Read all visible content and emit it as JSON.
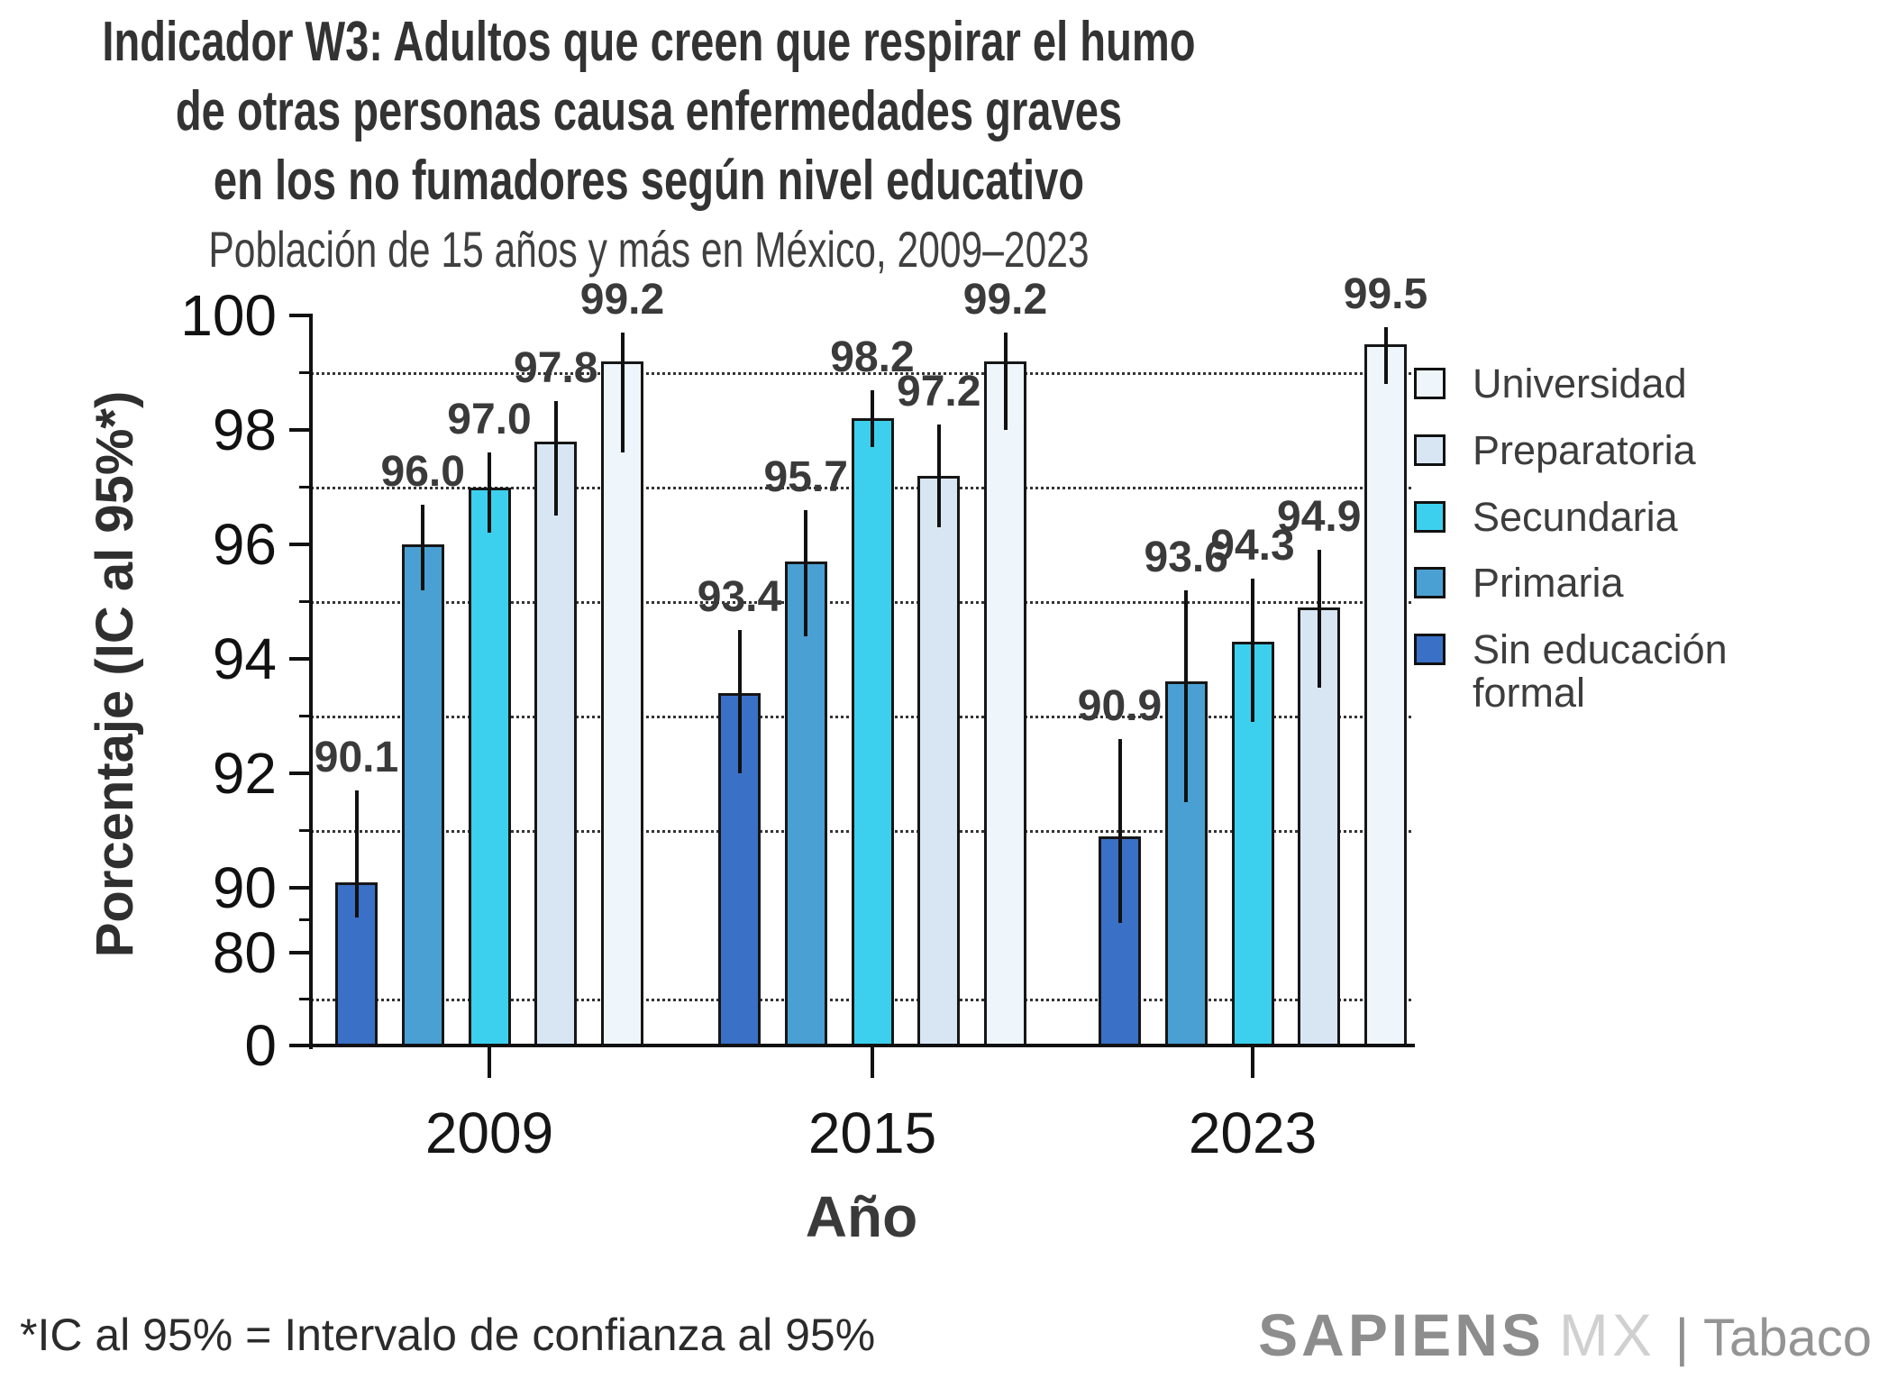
{
  "title": {
    "line1": "Indicador W3: Adultos que creen que respirar el humo",
    "line2": "de otras personas causa enfermedades graves",
    "line3": "en los no fumadores según nivel educativo"
  },
  "subtitle": "Población de 15 años y más en México, 2009–2023",
  "footnote": "*IC al 95% = Intervalo de confianza al 95%",
  "logo": {
    "brand": "SAPIENS",
    "suffix": "MX",
    "separator": "|",
    "product": "Tabaco"
  },
  "chart_data": {
    "type": "bar",
    "title": "Indicador W3: Adultos que creen que respirar el humo de otras personas causa enfermedades graves en los no fumadores según nivel educativo",
    "subtitle": "Población de 15 años y más en México, 2009–2023",
    "xlabel": "Año",
    "ylabel": "Porcentaje (IC al 95%*)",
    "categories": [
      "2009",
      "2015",
      "2023"
    ],
    "y_axis": {
      "major_ticks": [
        100,
        98,
        96,
        94,
        92,
        90,
        80,
        0
      ],
      "minor_ticks": [
        99,
        97,
        95,
        93,
        91,
        85,
        40
      ],
      "gridlines_at": [
        99,
        97,
        95,
        93,
        91,
        40
      ],
      "grid_style": "dotted",
      "scale_note": "non-linear axis, compressed below 90"
    },
    "legend_position": "right",
    "legend_order_top_to_bottom": [
      "Universidad",
      "Preparatoria",
      "Secundaria",
      "Primaria",
      "Sin educación formal"
    ],
    "series": [
      {
        "name": "Sin educación formal",
        "legend_label": "Sin educación\nformal",
        "color": "#3a70c6",
        "values": [
          90.1,
          93.4,
          90.9
        ],
        "ci_95": [
          [
            85.4,
            91.7
          ],
          [
            92.0,
            94.5
          ],
          [
            84.6,
            92.6
          ]
        ]
      },
      {
        "name": "Primaria",
        "legend_label": "Primaria",
        "color": "#4aa0d2",
        "values": [
          96.0,
          95.7,
          93.6
        ],
        "ci_95": [
          [
            95.2,
            96.7
          ],
          [
            94.4,
            96.6
          ],
          [
            91.5,
            95.2
          ]
        ]
      },
      {
        "name": "Secundaria",
        "legend_label": "Secundaria",
        "color": "#3cd0ee",
        "values": [
          97.0,
          98.2,
          94.3
        ],
        "ci_95": [
          [
            96.2,
            97.6
          ],
          [
            97.7,
            98.7
          ],
          [
            92.9,
            95.4
          ]
        ]
      },
      {
        "name": "Preparatoria",
        "legend_label": "Preparatoria",
        "color": "#d8e6f4",
        "values": [
          97.8,
          97.2,
          94.9
        ],
        "ci_95": [
          [
            96.5,
            98.5
          ],
          [
            96.3,
            98.1
          ],
          [
            93.5,
            95.9
          ]
        ]
      },
      {
        "name": "Universidad",
        "legend_label": "Universidad",
        "color": "#eef5fb",
        "values": [
          99.2,
          99.2,
          99.5
        ],
        "ci_95": [
          [
            97.6,
            99.7
          ],
          [
            98.0,
            99.7
          ],
          [
            98.8,
            99.8
          ]
        ]
      }
    ]
  }
}
